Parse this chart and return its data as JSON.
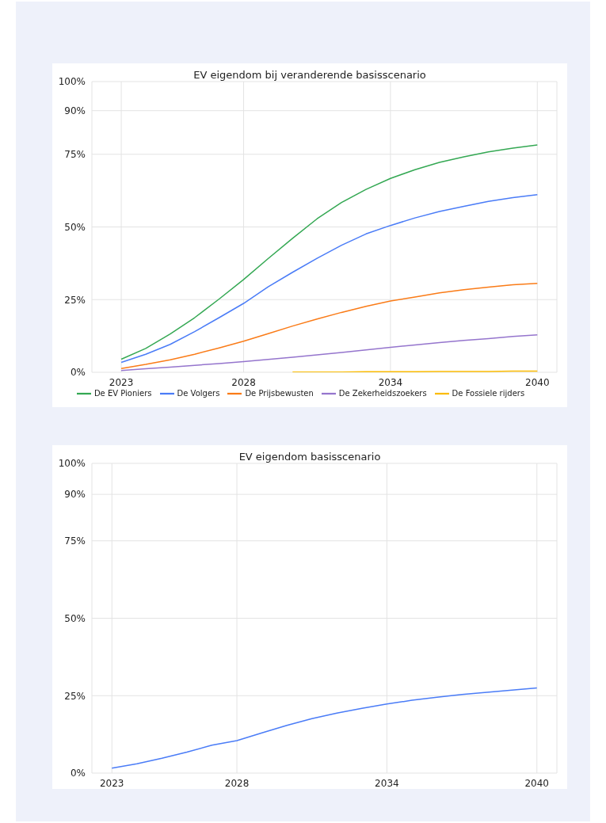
{
  "chart_data": [
    {
      "type": "line",
      "title": "EV eigendom bij veranderende basisscenario",
      "x": [
        2023,
        2024,
        2025,
        2026,
        2027,
        2028,
        2029,
        2030,
        2031,
        2032,
        2033,
        2034,
        2035,
        2036,
        2037,
        2038,
        2039,
        2040
      ],
      "xlim": [
        2021.8,
        2040.8
      ],
      "xticks": [
        2023,
        2028,
        2034,
        2040
      ],
      "ylim": [
        0,
        100
      ],
      "yticks": [
        {
          "value": 0,
          "label": "0%"
        },
        {
          "value": 25,
          "label": "25%"
        },
        {
          "value": 50,
          "label": "50%"
        },
        {
          "value": 75,
          "label": "75%"
        },
        {
          "value": 90,
          "label": "90%"
        },
        {
          "value": 100,
          "label": "100%"
        }
      ],
      "grid": true,
      "legend": "bottom",
      "marker": "none",
      "line_style": "solid",
      "series": [
        {
          "name": "De EV Pioniers",
          "color": "#34a853",
          "values": [
            4.5,
            8.2,
            13.2,
            18.8,
            25.2,
            31.9,
            39.1,
            46.1,
            52.8,
            58.4,
            62.9,
            66.7,
            69.7,
            72.2,
            74.1,
            75.8,
            77.1,
            78.2
          ]
        },
        {
          "name": "De Volgers",
          "color": "#4a7cf7",
          "values": [
            3.4,
            6.2,
            9.6,
            14,
            18.8,
            23.7,
            29.4,
            34.4,
            39.2,
            43.7,
            47.6,
            50.5,
            53.1,
            55.3,
            57.1,
            58.8,
            60.1,
            61.1
          ]
        },
        {
          "name": "De Prijsbewusten",
          "color": "#fa7b17",
          "values": [
            1.3,
            2.7,
            4.3,
            6.2,
            8.4,
            10.7,
            13.3,
            15.9,
            18.3,
            20.6,
            22.7,
            24.5,
            25.9,
            27.3,
            28.4,
            29.3,
            30.1,
            30.6
          ]
        },
        {
          "name": "De Zekerheidszoekers",
          "color": "#9575cd",
          "values": [
            0.6,
            1.2,
            1.8,
            2.4,
            3,
            3.7,
            4.4,
            5.2,
            6,
            6.8,
            7.7,
            8.6,
            9.4,
            10.2,
            11,
            11.6,
            12.3,
            12.9
          ]
        },
        {
          "name": "De Fossiele rijders",
          "color": "#fbbc04",
          "values": [
            null,
            null,
            null,
            null,
            null,
            null,
            null,
            0.1,
            0.1,
            0.1,
            0.2,
            0.2,
            0.2,
            0.3,
            0.3,
            0.3,
            0.4,
            0.4
          ]
        }
      ]
    },
    {
      "type": "line",
      "title": "EV eigendom basisscenario",
      "x": [
        2023,
        2024,
        2025,
        2026,
        2027,
        2028,
        2029,
        2030,
        2031,
        2032,
        2033,
        2034,
        2035,
        2036,
        2037,
        2038,
        2039,
        2040
      ],
      "xlim": [
        2022.2,
        2040.8
      ],
      "xticks": [
        2023,
        2028,
        2034,
        2040
      ],
      "ylim": [
        0,
        100
      ],
      "yticks": [
        {
          "value": 0,
          "label": "0%"
        },
        {
          "value": 25,
          "label": "25%"
        },
        {
          "value": 50,
          "label": "50%"
        },
        {
          "value": 75,
          "label": "75%"
        },
        {
          "value": 90,
          "label": "90%"
        },
        {
          "value": 100,
          "label": "100%"
        }
      ],
      "grid": true,
      "marker": "none",
      "line_style": "solid",
      "series": [
        {
          "color": "#4a7cf7",
          "values": [
            1.6,
            3,
            4.8,
            6.8,
            9,
            10.5,
            13,
            15.4,
            17.6,
            19.4,
            20.9,
            22.3,
            23.5,
            24.5,
            25.4,
            26.1,
            26.8,
            27.5
          ]
        }
      ]
    }
  ]
}
